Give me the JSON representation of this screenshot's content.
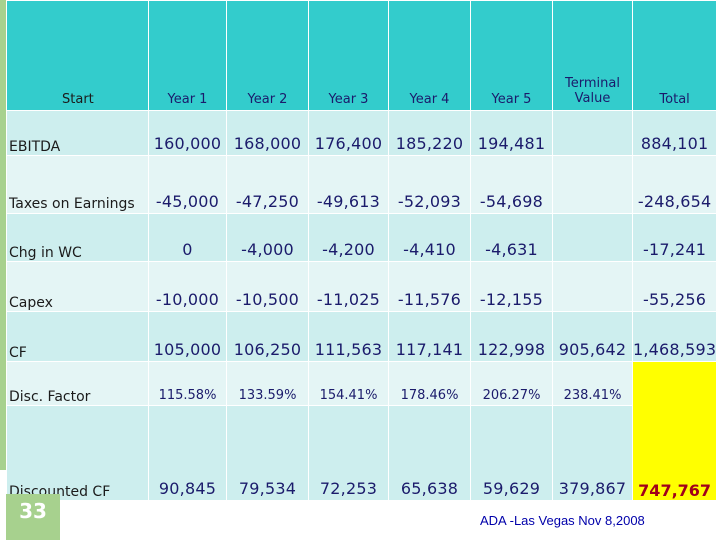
{
  "table": {
    "header": {
      "start": "Start",
      "years": [
        "Year 1",
        "Year 2",
        "Year 3",
        "Year 4",
        "Year 5"
      ],
      "terminal": "Terminal Value",
      "total": "Total"
    },
    "rows": {
      "ebitda": {
        "label": "EBITDA",
        "values": [
          "160,000",
          "168,000",
          "176,400",
          "185,220",
          "194,481"
        ],
        "terminal": "",
        "total": "884,101"
      },
      "taxes": {
        "label": "Taxes on Earnings",
        "values": [
          "-45,000",
          "-47,250",
          "-49,613",
          "-52,093",
          "-54,698"
        ],
        "terminal": "",
        "total": "-248,654"
      },
      "wc": {
        "label": "Chg in WC",
        "values": [
          "0",
          "-4,000",
          "-4,200",
          "-4,410",
          "-4,631"
        ],
        "terminal": "",
        "total": "-17,241"
      },
      "capex": {
        "label": "Capex",
        "values": [
          "-10,000",
          "-10,500",
          "-11,025",
          "-11,576",
          "-12,155"
        ],
        "terminal": "",
        "total": "-55,256"
      },
      "cf": {
        "label": "CF",
        "values": [
          "105,000",
          "106,250",
          "111,563",
          "117,141",
          "122,998"
        ],
        "terminal": "905,642",
        "total": "1,468,593"
      },
      "disc": {
        "label": "Disc. Factor",
        "values": [
          "115.58%",
          "133.59%",
          "154.41%",
          "178.46%",
          "206.27%"
        ],
        "terminal": "238.41%",
        "total": ""
      },
      "dcf": {
        "label": "Discounted CF",
        "values": [
          "90,845",
          "79,534",
          "72,253",
          "65,638",
          "59,629"
        ],
        "terminal": "379,867",
        "total": "747,767"
      }
    }
  },
  "footer": {
    "slide_number": "33",
    "text": "ADA -Las Vegas Nov 8,2008"
  },
  "colors": {
    "header_bg": "#33cccc",
    "row_light": "#cdeeee",
    "row_pale": "#e4f5f5",
    "accent_green": "#a7d18e",
    "highlight": "#ffff00",
    "text_navy": "#1b1b6b",
    "total_red": "#a0001a"
  }
}
